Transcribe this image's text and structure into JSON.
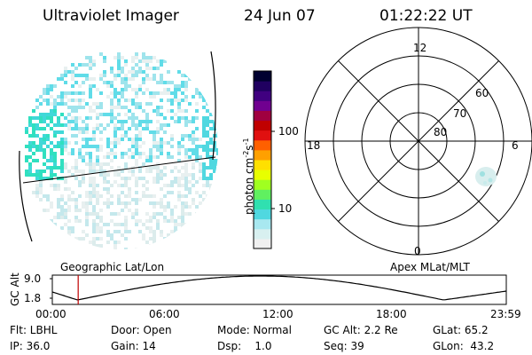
{
  "header": {
    "title": "Ultraviolet Imager",
    "date": "24 Jun 07",
    "time": "01:22:22 UT"
  },
  "colorbar": {
    "label": "photon cm-2s-1",
    "label_main": "photon cm",
    "label_sup1": "-2",
    "label_mid": "s",
    "label_sup2": "-1",
    "ticks": [
      "100",
      "10"
    ],
    "colors": [
      "#000030",
      "#200060",
      "#400080",
      "#700090",
      "#a00040",
      "#c00000",
      "#e01010",
      "#ff6000",
      "#ffa000",
      "#ffe000",
      "#e8ff00",
      "#a0ff20",
      "#60f060",
      "#30e0b0",
      "#50d8e0",
      "#a8e8f0",
      "#d8f0f0",
      "#f0f0f0"
    ]
  },
  "geo_panel": {
    "label": "Geographic Lat/Lon"
  },
  "polar_panel": {
    "label": "Apex MLat/MLT",
    "mlt_labels": [
      "12",
      "18",
      "6",
      "0"
    ],
    "lat_labels": [
      "60",
      "70",
      "80"
    ]
  },
  "timeline": {
    "ylabel": "GC Alt",
    "yticks": [
      "9.0",
      "1.8"
    ],
    "xticks": [
      "00:00",
      "06:00",
      "12:00",
      "18:00",
      "23:59"
    ],
    "current_time": "01:22"
  },
  "info": {
    "row1": [
      "Flt: LBHL",
      "Door: Open",
      "Mode: Normal",
      "GC Alt: 2.2 Re",
      "GLat: 65.2"
    ],
    "row2": [
      "IP: 36.0",
      "Gain: 14",
      "Dsp:    1.0",
      "Seq: 39",
      "GLon:  43.2"
    ]
  },
  "colors": {
    "cursor": "#c00000",
    "aurora_cyan": "#40d8d8"
  }
}
